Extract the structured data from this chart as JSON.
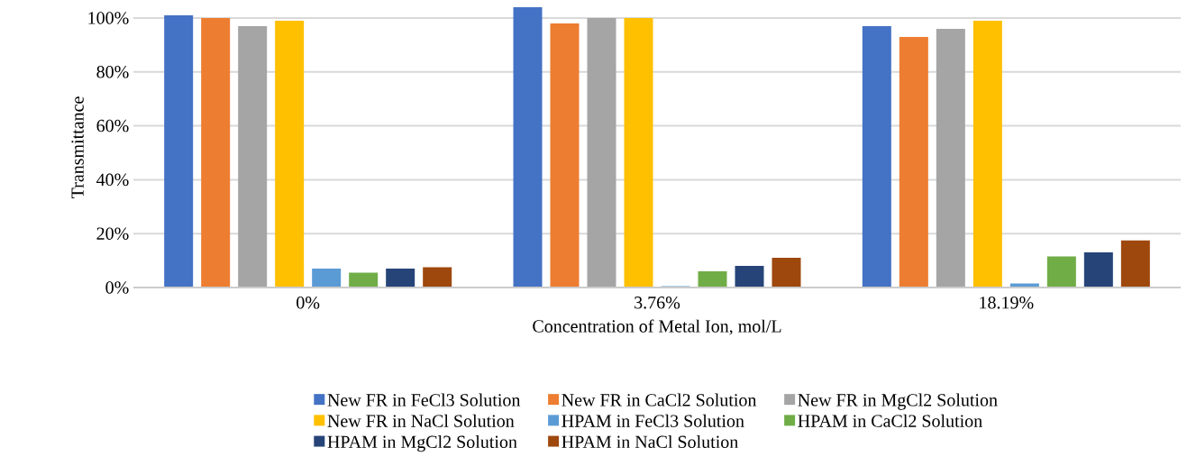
{
  "chart_data": {
    "type": "bar",
    "xlabel": "Concentration of Metal Ion, mol/L",
    "ylabel": "Transmittance",
    "categories": [
      "0%",
      "3.76%",
      "18.19%"
    ],
    "series": [
      {
        "name": "New FR in FeCl3 Solution",
        "color": "#4472c4",
        "values": [
          101,
          104,
          97
        ]
      },
      {
        "name": "New FR in CaCl2 Solution",
        "color": "#ed7d31",
        "values": [
          100,
          98,
          93
        ]
      },
      {
        "name": "New FR in MgCl2 Solution",
        "color": "#a5a5a5",
        "values": [
          97,
          100,
          96
        ]
      },
      {
        "name": "New FR in NaCl Solution",
        "color": "#ffc000",
        "values": [
          99,
          100,
          99
        ]
      },
      {
        "name": "HPAM in FeCl3 Solution",
        "color": "#5b9bd5",
        "values": [
          7,
          0.5,
          1.5
        ]
      },
      {
        "name": "HPAM in CaCl2 Solution",
        "color": "#70ad47",
        "values": [
          5.5,
          6,
          11.5
        ]
      },
      {
        "name": "HPAM in MgCl2 Solution",
        "color": "#264478",
        "values": [
          7,
          8,
          13
        ]
      },
      {
        "name": "HPAM in NaCl Solution",
        "color": "#9e480e",
        "values": [
          7.5,
          11,
          17.5
        ]
      }
    ],
    "yticks": [
      {
        "value": 0,
        "label": "0%"
      },
      {
        "value": 20,
        "label": "20%"
      },
      {
        "value": 40,
        "label": "40%"
      },
      {
        "value": 60,
        "label": "60%"
      },
      {
        "value": 80,
        "label": "80%"
      },
      {
        "value": 100,
        "label": "100%"
      }
    ],
    "ylim": [
      0,
      104
    ],
    "grid": "y",
    "legend": "bottom"
  }
}
